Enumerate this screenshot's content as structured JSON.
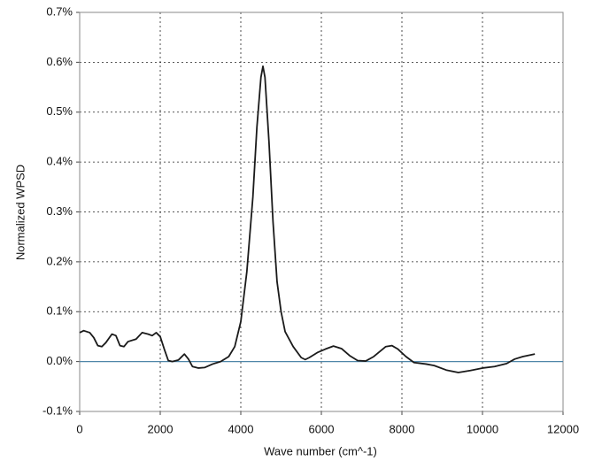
{
  "chart_data": {
    "type": "line",
    "xlabel": "Wave number (cm^-1)",
    "ylabel": "Normalized WPSD",
    "x": [
      0,
      100,
      250,
      350,
      450,
      550,
      650,
      800,
      900,
      1000,
      1100,
      1200,
      1400,
      1550,
      1700,
      1800,
      1900,
      2000,
      2100,
      2200,
      2300,
      2450,
      2600,
      2700,
      2800,
      2950,
      3100,
      3300,
      3500,
      3700,
      3850,
      4000,
      4150,
      4300,
      4400,
      4500,
      4550,
      4600,
      4700,
      4800,
      4900,
      5000,
      5100,
      5300,
      5500,
      5600,
      5700,
      5900,
      6100,
      6300,
      6500,
      6700,
      6900,
      7100,
      7300,
      7600,
      7750,
      7900,
      8100,
      8300,
      8600,
      8800,
      9100,
      9400,
      9700,
      10000,
      10300,
      10600,
      10800,
      11000,
      11300
    ],
    "series": [
      {
        "color": "#1a1a1a",
        "values": [
          0.058,
          0.062,
          0.058,
          0.048,
          0.032,
          0.03,
          0.038,
          0.055,
          0.052,
          0.032,
          0.03,
          0.04,
          0.045,
          0.058,
          0.055,
          0.052,
          0.058,
          0.05,
          0.025,
          0.002,
          0.0,
          0.003,
          0.015,
          0.005,
          -0.01,
          -0.013,
          -0.012,
          -0.005,
          0.0,
          0.01,
          0.03,
          0.08,
          0.18,
          0.33,
          0.47,
          0.57,
          0.592,
          0.57,
          0.44,
          0.28,
          0.16,
          0.1,
          0.06,
          0.03,
          0.008,
          0.004,
          0.008,
          0.018,
          0.025,
          0.031,
          0.026,
          0.012,
          0.002,
          0.001,
          0.01,
          0.03,
          0.032,
          0.025,
          0.01,
          -0.002,
          -0.005,
          -0.008,
          -0.017,
          -0.022,
          -0.018,
          -0.013,
          -0.01,
          -0.004,
          0.005,
          0.01,
          0.015
        ]
      }
    ],
    "xlim": [
      0,
      12000
    ],
    "xticks": [
      0,
      2000,
      4000,
      6000,
      8000,
      10000,
      12000
    ],
    "ylim": [
      -0.1,
      0.7
    ],
    "yticks": [
      {
        "value": -0.1,
        "label": "-0.1%"
      },
      {
        "value": 0,
        "label": "0.0%"
      },
      {
        "value": 0.1,
        "label": "0.1%"
      },
      {
        "value": 0.2,
        "label": "0.2%"
      },
      {
        "value": 0.3,
        "label": "0.3%"
      },
      {
        "value": 0.4,
        "label": "0.4%"
      },
      {
        "value": 0.5,
        "label": "0.5%"
      },
      {
        "value": 0.6,
        "label": "0.6%"
      },
      {
        "value": 0.7,
        "label": "0.7%"
      }
    ],
    "grid": true,
    "zero_line_color": "#4f86a8"
  }
}
